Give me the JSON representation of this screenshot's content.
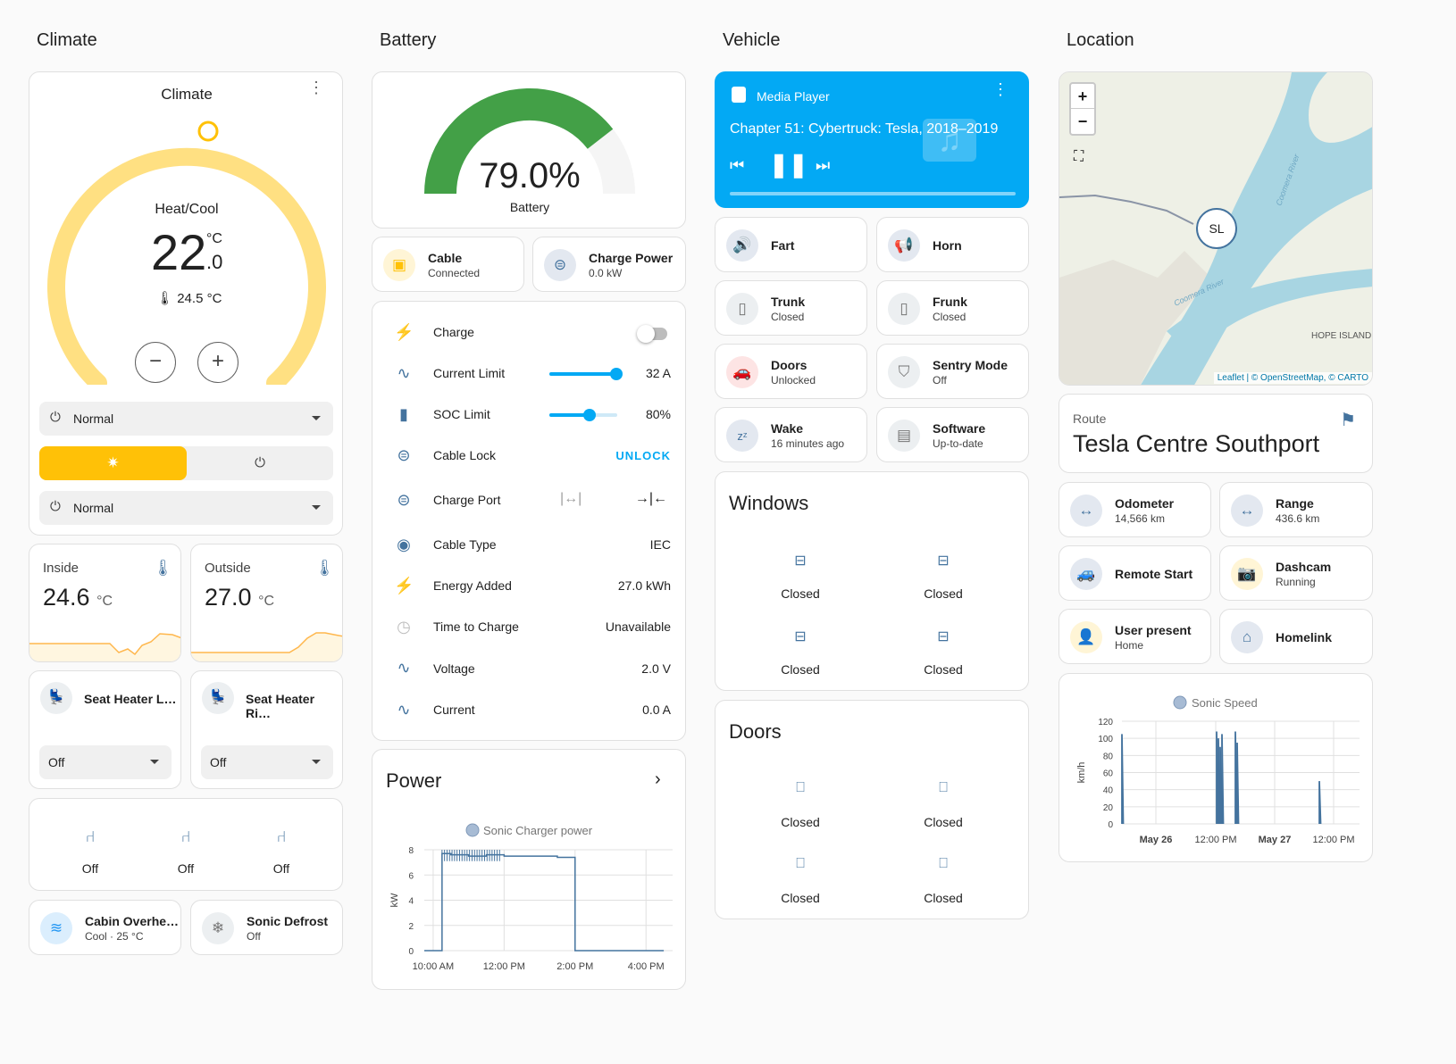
{
  "columns": {
    "climate": "Climate",
    "battery": "Battery",
    "vehicle": "Vehicle",
    "location": "Location"
  },
  "climate_card": {
    "title": "Climate",
    "mode": "Heat/Cool",
    "target_whole": "22",
    "target_decimal": ".0",
    "unit": "°C",
    "current": "24.5 °C",
    "preset1": "Normal",
    "preset2": "Normal",
    "accent": "#ffc107",
    "arc": "#ffe082"
  },
  "inside": {
    "label": "Inside",
    "value": "24.6",
    "unit": "°C"
  },
  "outside": {
    "label": "Outside",
    "value": "27.0",
    "unit": "°C"
  },
  "seat_left": {
    "label": "Seat Heater L…",
    "value": "Off"
  },
  "seat_right": {
    "label": "Seat Heater Ri…",
    "value": "Off"
  },
  "rear_seats": [
    "Off",
    "Off",
    "Off"
  ],
  "cabin": {
    "label": "Cabin Overhe…",
    "status": "Cool · 25 °C"
  },
  "defrost": {
    "label": "Sonic Defrost",
    "status": "Off"
  },
  "battery_gauge": {
    "value": "79.0%",
    "label": "Battery",
    "level": 0.79,
    "color": "#43a047"
  },
  "cable": {
    "label": "Cable",
    "status": "Connected"
  },
  "charge_power": {
    "label": "Charge Power",
    "status": "0.0 kW"
  },
  "charge_rows": [
    {
      "label": "Charge",
      "value": ""
    },
    {
      "label": "Current Limit",
      "value": "32 A",
      "slider": 1.0
    },
    {
      "label": "SOC Limit",
      "value": "80%",
      "slider": 0.6
    },
    {
      "label": "Cable Lock",
      "value": "UNLOCK"
    },
    {
      "label": "Charge Port",
      "value": ""
    },
    {
      "label": "Cable Type",
      "value": "IEC"
    },
    {
      "label": "Energy Added",
      "value": "27.0 kWh"
    },
    {
      "label": "Time to Charge",
      "value": "Unavailable"
    },
    {
      "label": "Voltage",
      "value": "2.0 V"
    },
    {
      "label": "Current",
      "value": "0.0 A"
    }
  ],
  "power_card": {
    "title": "Power"
  },
  "power_chart": {
    "chart_data": {
      "type": "line",
      "title": "",
      "series": [
        {
          "name": "Sonic Charger power",
          "x": [
            "09:45",
            "10:00",
            "10:10",
            "10:15",
            "10:30",
            "11:00",
            "11:30",
            "12:00",
            "12:30",
            "13:00",
            "13:30",
            "13:45",
            "13:55",
            "14:00",
            "14:30",
            "15:00",
            "15:30",
            "16:00",
            "16:30"
          ],
          "values": [
            0,
            0,
            0,
            7.7,
            7.6,
            7.5,
            7.6,
            7.5,
            7.5,
            7.5,
            7.4,
            7.4,
            7.4,
            0,
            0,
            0,
            0,
            0,
            0
          ]
        }
      ],
      "xticks": [
        "10:00 AM",
        "12:00 PM",
        "2:00 PM",
        "4:00 PM"
      ],
      "ylabel": "kW",
      "ylim": [
        0,
        8
      ],
      "yticks": [
        "0",
        "2",
        "4",
        "6",
        "8"
      ]
    }
  },
  "media": {
    "title": "Media Player",
    "track": "Chapter 51: Cybertruck: Tesla, 2018–2019"
  },
  "vehicle_tiles": [
    {
      "label": "Fart",
      "status": ""
    },
    {
      "label": "Horn",
      "status": ""
    },
    {
      "label": "Trunk",
      "status": "Closed"
    },
    {
      "label": "Frunk",
      "status": "Closed"
    },
    {
      "label": "Doors",
      "status": "Unlocked"
    },
    {
      "label": "Sentry Mode",
      "status": "Off"
    },
    {
      "label": "Wake",
      "status": "16 minutes ago"
    },
    {
      "label": "Software",
      "status": "Up-to-date"
    }
  ],
  "windows": {
    "title": "Windows",
    "items": [
      "Closed",
      "Closed",
      "Closed",
      "Closed"
    ]
  },
  "doors": {
    "title": "Doors",
    "items": [
      "Closed",
      "Closed",
      "Closed",
      "Closed"
    ]
  },
  "map": {
    "marker": "SL",
    "attribution": "Leaflet | © OpenStreetMap, © CARTO",
    "labels": [
      "Coomera River",
      "Coomera River",
      "HOPE ISLAND"
    ]
  },
  "route": {
    "label": "Route",
    "destination": "Tesla Centre Southport"
  },
  "location_tiles": [
    {
      "label": "Odometer",
      "status": "14,566 km"
    },
    {
      "label": "Range",
      "status": "436.6 km"
    },
    {
      "label": "Remote Start",
      "status": ""
    },
    {
      "label": "Dashcam",
      "status": "Running"
    },
    {
      "label": "User present",
      "status": "Home"
    },
    {
      "label": "Homelink",
      "status": ""
    }
  ],
  "speed_chart": {
    "chart_data": {
      "type": "line",
      "series": [
        {
          "name": "Sonic Speed"
        }
      ],
      "xticks": [
        "May 26",
        "12:00 PM",
        "May 27",
        "12:00 PM"
      ],
      "ylabel": "km/h",
      "ylim": [
        0,
        120
      ],
      "yticks": [
        "0",
        "20",
        "40",
        "60",
        "80",
        "100",
        "120"
      ]
    }
  }
}
